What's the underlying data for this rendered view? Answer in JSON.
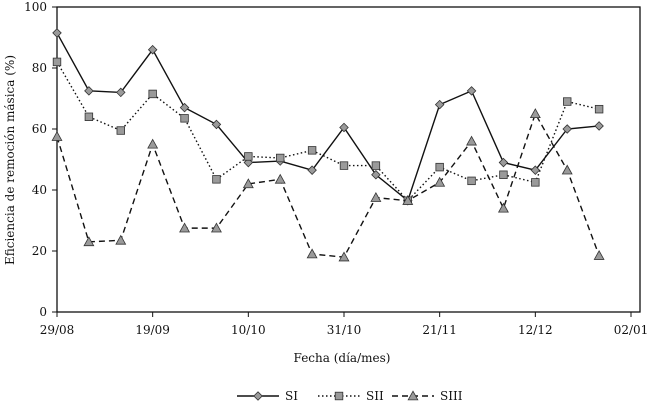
{
  "chart_data": {
    "type": "line",
    "title": "",
    "xlabel": "Fecha (día/mes)",
    "ylabel": "Eficiencia de remoción másica (%)",
    "ylim": [
      0,
      100
    ],
    "yticks": [
      "0",
      "20",
      "40",
      "60",
      "80",
      "100"
    ],
    "xticks": [
      {
        "label": "29/08",
        "day": 0
      },
      {
        "label": "19/09",
        "day": 21
      },
      {
        "label": "10/10",
        "day": 42
      },
      {
        "label": "31/10",
        "day": 63
      },
      {
        "label": "21/11",
        "day": 84
      },
      {
        "label": "12/12",
        "day": 105
      },
      {
        "label": "02/01",
        "day": 126
      }
    ],
    "x_dates": [
      "29/08",
      "05/09",
      "12/09",
      "19/09",
      "26/09",
      "03/10",
      "10/10",
      "17/10",
      "24/10",
      "31/10",
      "07/11",
      "14/11",
      "21/11",
      "28/11",
      "05/12",
      "12/12",
      "19/12",
      "26/12"
    ],
    "x_days": [
      0,
      7,
      14,
      21,
      28,
      35,
      42,
      49,
      56,
      63,
      70,
      77,
      84,
      91,
      98,
      105,
      112,
      119
    ],
    "grid": false,
    "legend_position": "bottom",
    "series": [
      {
        "name": "SI",
        "marker": "diamond",
        "dash": "solid",
        "color": "#111111",
        "marker_fill": "#9a9a9a",
        "values": [
          91.5,
          72.5,
          72,
          86,
          67,
          61.5,
          49,
          49.5,
          46.5,
          60.5,
          45,
          36.5,
          68,
          72.5,
          49,
          46.5,
          60,
          61
        ]
      },
      {
        "name": "SII",
        "marker": "square",
        "dash": "dotted",
        "color": "#111111",
        "marker_fill": "#9a9a9a",
        "values": [
          82,
          64,
          59.5,
          71.5,
          63.5,
          43.5,
          51,
          50.5,
          53,
          48,
          48,
          36.5,
          47.5,
          43,
          45,
          42.5,
          69,
          66.5
        ]
      },
      {
        "name": "SIII",
        "marker": "triangle",
        "dash": "dashed",
        "color": "#111111",
        "marker_fill": "#9a9a9a",
        "values": [
          57.5,
          23,
          23.5,
          55,
          27.5,
          27.5,
          42,
          43.5,
          19,
          18,
          37.5,
          36.5,
          42.5,
          56,
          34,
          65,
          46.5,
          18.5
        ]
      }
    ]
  }
}
